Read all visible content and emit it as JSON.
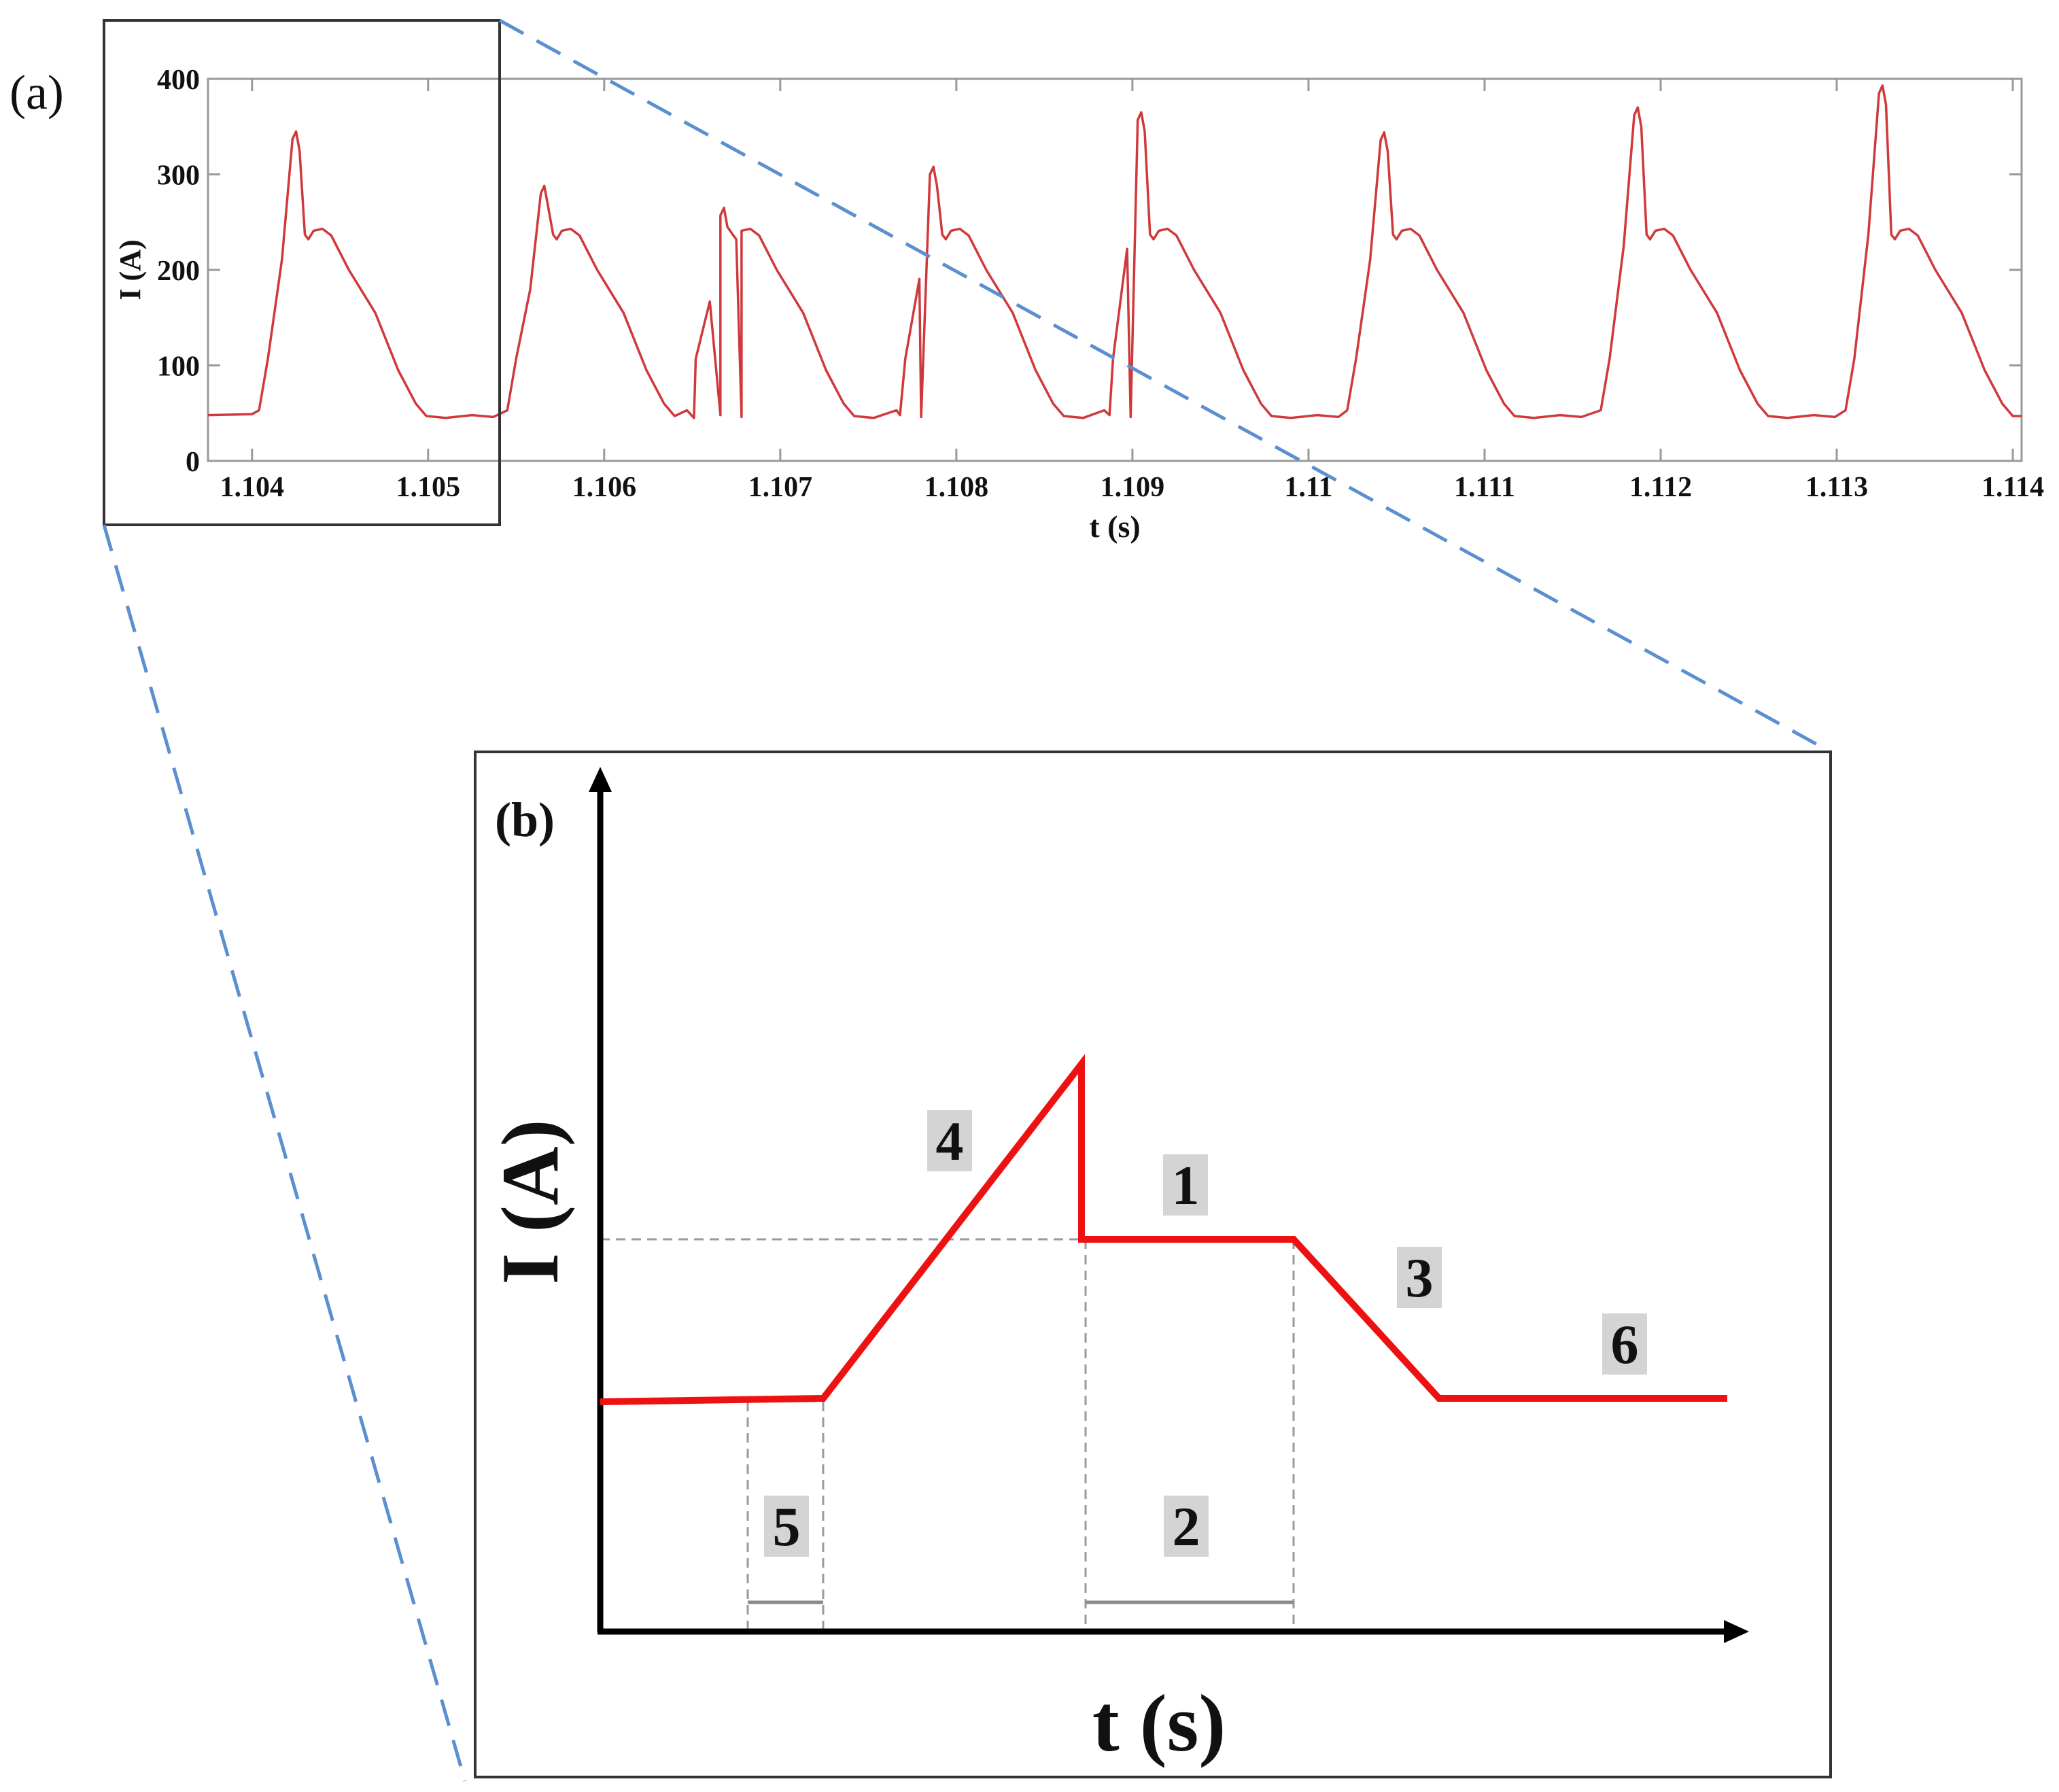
{
  "panel_a": {
    "label": "(a)",
    "chart_data": {
      "type": "line",
      "xlabel": "t (s)",
      "ylabel": "I (A)",
      "xlim": [
        1.10375,
        1.11405
      ],
      "ylim": [
        0,
        400
      ],
      "xticks": [
        1.104,
        1.105,
        1.106,
        1.107,
        1.108,
        1.109,
        1.11,
        1.111,
        1.112,
        1.113,
        1.114
      ],
      "xtick_labels": [
        "1.104",
        "1.105",
        "1.106",
        "1.107",
        "1.108",
        "1.109",
        "1.11",
        "1.111",
        "1.112",
        "1.113",
        "1.114"
      ],
      "yticks": [
        0,
        100,
        200,
        300,
        400
      ],
      "ytick_labels": [
        "0",
        "100",
        "200",
        "300",
        "400"
      ],
      "grid": false,
      "line_color": "#d0393b",
      "baseline": 47,
      "pulses": [
        {
          "t_peak": 1.10425,
          "peak": 345
        },
        {
          "t_peak": 1.10566,
          "peak": 288
        },
        {
          "t_peak": 1.10668,
          "peak": 265
        },
        {
          "t_peak": 1.10787,
          "peak": 308
        },
        {
          "t_peak": 1.10905,
          "peak": 365
        },
        {
          "t_peak": 1.11043,
          "peak": 344
        },
        {
          "t_peak": 1.11187,
          "peak": 370
        },
        {
          "t_peak": 1.11326,
          "peak": 393
        }
      ],
      "plateau": 240,
      "zoom_window": [
        1.10375,
        1.10545
      ]
    }
  },
  "panel_b": {
    "label": "(b)",
    "chart_data": {
      "type": "line",
      "xlabel": "t (s)",
      "ylabel": "I (A)",
      "line_color": "#ee1111",
      "segment_labels": [
        "4",
        "1",
        "3",
        "6",
        "5",
        "2"
      ]
    }
  },
  "colors": {
    "zoom_lines": "#5b8fd0",
    "frame": "#333333",
    "label_bg": "#d4d4d4",
    "guide": "#9a9a9a"
  }
}
